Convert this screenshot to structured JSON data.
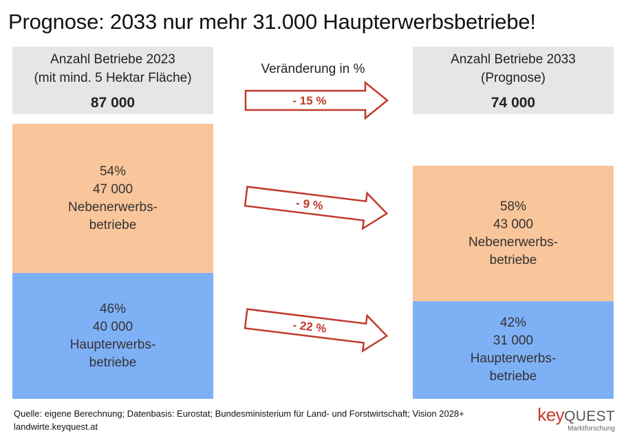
{
  "title": "Prognose: 2033 nur mehr 31.000 Haupterwerbsbetriebe!",
  "left_header": {
    "line1": "Anzahl Betriebe 2023",
    "line2": "(mit mind. 5 Hektar Fläche)",
    "total": "87 000"
  },
  "right_header": {
    "line1": "Anzahl Betriebe 2033",
    "line2": "(Prognose)",
    "total": "74 000"
  },
  "change_label": "Veränderung in %",
  "segments": {
    "left_neben": {
      "pct": "54%",
      "count": "47 000",
      "name1": "Nebenerwerbs-",
      "name2": "betriebe"
    },
    "left_haupt": {
      "pct": "46%",
      "count": "40 000",
      "name1": "Haupterwerbs-",
      "name2": "betriebe"
    },
    "right_neben": {
      "pct": "58%",
      "count": "43 000",
      "name1": "Nebenerwerbs-",
      "name2": "betriebe"
    },
    "right_haupt": {
      "pct": "42%",
      "count": "31 000",
      "name1": "Haupterwerbs-",
      "name2": "betriebe"
    }
  },
  "arrows": {
    "total": "- 15 %",
    "neben": "- 9 %",
    "haupt": "- 22 %"
  },
  "source_line1": "Quelle: eigene Berechnung; Datenbasis: Eurostat; Bundesministerium für Land- und Forstwirtschaft; Vision 2028+",
  "source_line2": "landwirte.keyquest.at",
  "logo": {
    "key": "key",
    "quest": "QUEST",
    "sub": "Marktforschung"
  },
  "colors": {
    "nebenerwerb": "#f9c59a",
    "haupterwerb": "#7eb0f5",
    "header": "#e6e6e6",
    "arrow": "#c0392b"
  },
  "chart_data": {
    "type": "bar",
    "categories": [
      "2023",
      "2033"
    ],
    "series": [
      {
        "name": "Haupterwerbsbetriebe",
        "values": [
          40000,
          31000
        ],
        "shares_pct": [
          46,
          42
        ]
      },
      {
        "name": "Nebenerwerbsbetriebe",
        "values": [
          47000,
          43000
        ],
        "shares_pct": [
          54,
          58
        ]
      }
    ],
    "totals": [
      87000,
      74000
    ],
    "changes_pct": {
      "total": -15,
      "Nebenerwerbsbetriebe": -9,
      "Haupterwerbsbetriebe": -22
    },
    "stacked": true,
    "grid": false
  }
}
